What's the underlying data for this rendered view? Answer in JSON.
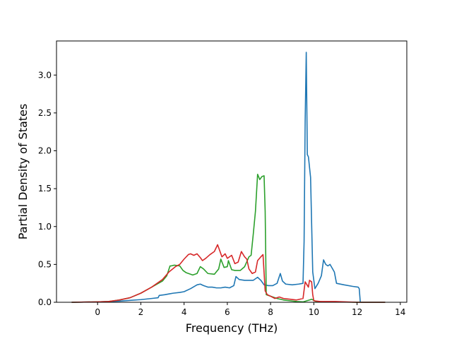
{
  "chart_data": {
    "type": "line",
    "title": "",
    "xlabel": "Frequency (THz)",
    "ylabel": "Partial Density of States",
    "xlim": [
      -1.9,
      14.3
    ],
    "ylim": [
      0,
      3.45
    ],
    "xticks": [
      0,
      2,
      4,
      6,
      8,
      10,
      12,
      14
    ],
    "yticks": [
      0.0,
      0.5,
      1.0,
      1.5,
      2.0,
      2.5,
      3.0
    ],
    "grid": false,
    "legend": "none",
    "series": [
      {
        "color": "#1f77b4",
        "x": [
          -1.2,
          0.0,
          0.5,
          1.0,
          1.5,
          2.0,
          2.5,
          2.8,
          2.85,
          3.1,
          3.3,
          3.5,
          3.8,
          4.0,
          4.3,
          4.6,
          4.75,
          4.9,
          5.1,
          5.3,
          5.5,
          5.7,
          5.9,
          6.1,
          6.3,
          6.4,
          6.55,
          6.8,
          7.0,
          7.2,
          7.4,
          7.55,
          7.7,
          7.9,
          8.1,
          8.3,
          8.45,
          8.55,
          8.7,
          9.0,
          9.3,
          9.5,
          9.55,
          9.6,
          9.65,
          9.7,
          9.75,
          9.85,
          9.95,
          10.05,
          10.2,
          10.35,
          10.45,
          10.55,
          10.65,
          10.75,
          10.85,
          10.95,
          11.05,
          11.4,
          11.8,
          12.05,
          12.1,
          12.15,
          12.5,
          13.3
        ],
        "y": [
          0,
          0.005,
          0.01,
          0.015,
          0.025,
          0.035,
          0.05,
          0.06,
          0.09,
          0.1,
          0.11,
          0.12,
          0.13,
          0.14,
          0.18,
          0.23,
          0.24,
          0.22,
          0.2,
          0.2,
          0.19,
          0.19,
          0.2,
          0.19,
          0.22,
          0.34,
          0.3,
          0.29,
          0.29,
          0.29,
          0.33,
          0.29,
          0.23,
          0.22,
          0.22,
          0.25,
          0.38,
          0.28,
          0.24,
          0.23,
          0.24,
          0.25,
          0.8,
          2.4,
          3.3,
          1.95,
          1.92,
          1.65,
          0.4,
          0.18,
          0.25,
          0.35,
          0.56,
          0.5,
          0.48,
          0.5,
          0.45,
          0.4,
          0.25,
          0.23,
          0.21,
          0.2,
          0.18,
          0,
          0,
          0
        ]
      },
      {
        "color": "#2ca02c",
        "x": [
          -1.2,
          0.0,
          0.5,
          1.0,
          1.5,
          2.0,
          2.5,
          3.0,
          3.2,
          3.35,
          3.4,
          3.55,
          3.8,
          3.95,
          4.1,
          4.4,
          4.6,
          4.75,
          4.9,
          5.1,
          5.4,
          5.6,
          5.7,
          5.85,
          6.0,
          6.05,
          6.2,
          6.35,
          6.6,
          6.8,
          7.0,
          7.1,
          7.2,
          7.3,
          7.4,
          7.5,
          7.6,
          7.7,
          7.75,
          7.8,
          8.0,
          8.3,
          8.6,
          8.9,
          9.2,
          9.5,
          9.8,
          9.9,
          10.1,
          10.5,
          11.0,
          12.0,
          13.3
        ],
        "y": [
          0,
          0.005,
          0.01,
          0.03,
          0.06,
          0.12,
          0.2,
          0.28,
          0.35,
          0.48,
          0.48,
          0.49,
          0.48,
          0.42,
          0.39,
          0.36,
          0.38,
          0.47,
          0.44,
          0.38,
          0.37,
          0.44,
          0.57,
          0.46,
          0.47,
          0.55,
          0.43,
          0.42,
          0.42,
          0.47,
          0.6,
          0.62,
          0.9,
          1.2,
          1.69,
          1.62,
          1.66,
          1.67,
          1.2,
          0.1,
          0.08,
          0.05,
          0.03,
          0.02,
          0.01,
          0.005,
          0.03,
          0.04,
          0.01,
          0.005,
          0.005,
          0,
          0
        ]
      },
      {
        "color": "#d62728",
        "x": [
          -1.2,
          0.0,
          0.5,
          1.0,
          1.5,
          2.0,
          2.5,
          3.0,
          3.3,
          3.6,
          3.8,
          4.0,
          4.2,
          4.3,
          4.45,
          4.6,
          4.75,
          4.85,
          5.0,
          5.2,
          5.4,
          5.55,
          5.6,
          5.75,
          5.9,
          6.0,
          6.2,
          6.35,
          6.5,
          6.65,
          6.8,
          6.9,
          7.0,
          7.15,
          7.3,
          7.4,
          7.55,
          7.65,
          7.75,
          7.85,
          8.0,
          8.2,
          8.4,
          8.6,
          8.9,
          9.2,
          9.5,
          9.6,
          9.75,
          9.8,
          9.9,
          9.95,
          10.0,
          10.3,
          11.0,
          12.0,
          13.3
        ],
        "y": [
          0,
          0.005,
          0.01,
          0.03,
          0.06,
          0.12,
          0.2,
          0.3,
          0.4,
          0.47,
          0.5,
          0.57,
          0.63,
          0.64,
          0.62,
          0.64,
          0.59,
          0.55,
          0.58,
          0.63,
          0.67,
          0.76,
          0.72,
          0.6,
          0.64,
          0.58,
          0.62,
          0.51,
          0.53,
          0.67,
          0.6,
          0.57,
          0.44,
          0.38,
          0.4,
          0.55,
          0.6,
          0.63,
          0.15,
          0.1,
          0.08,
          0.05,
          0.07,
          0.05,
          0.04,
          0.03,
          0.05,
          0.27,
          0.2,
          0.29,
          0.27,
          0.1,
          0.02,
          0.01,
          0.01,
          0,
          0
        ]
      }
    ]
  }
}
